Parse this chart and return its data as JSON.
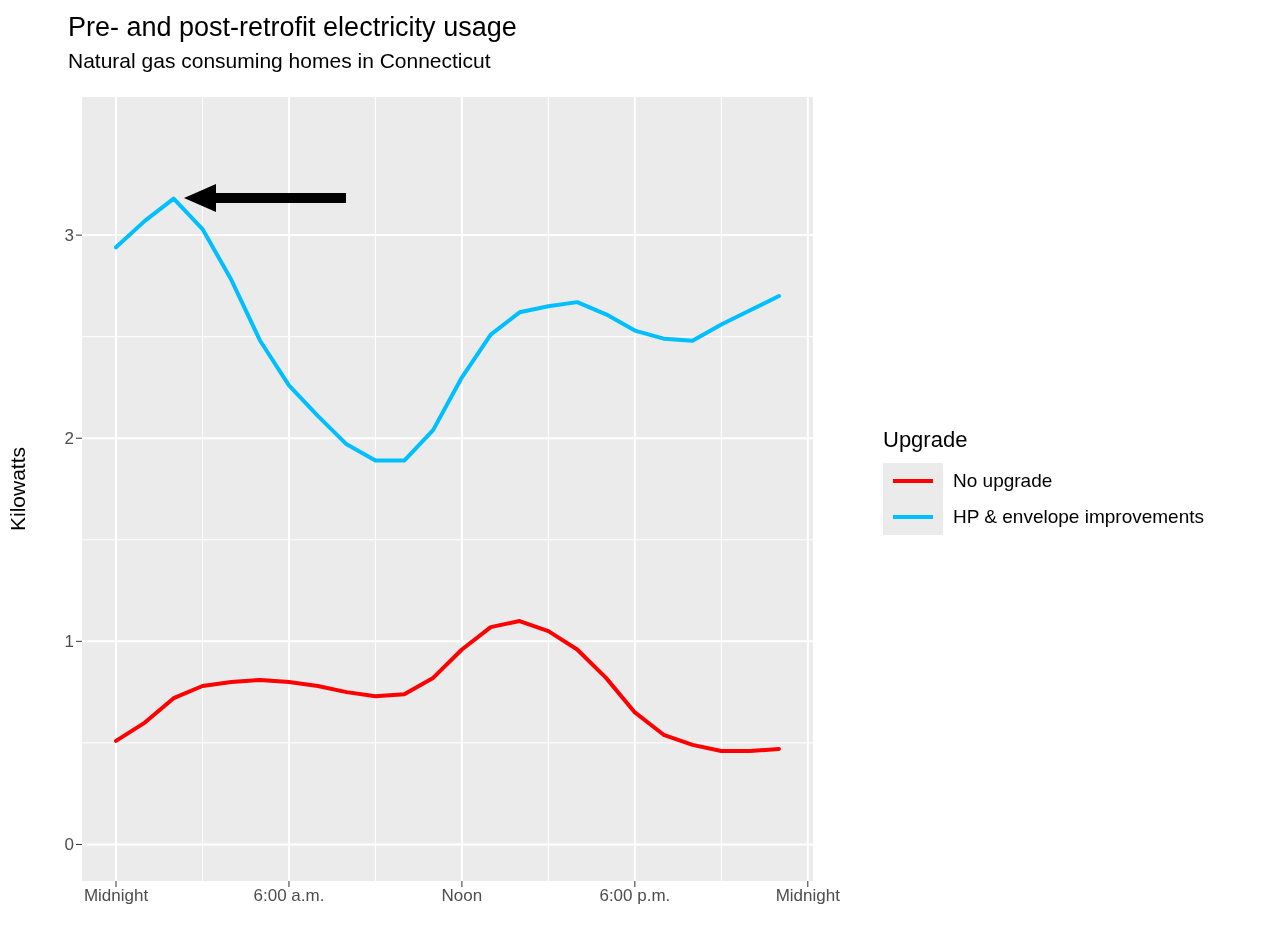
{
  "chart_data": {
    "type": "line",
    "title": "Pre- and post-retrofit electricity usage",
    "subtitle": "Natural gas consuming homes in Connecticut",
    "ylabel": "Kilowatts",
    "legend_title": "Upgrade",
    "x": [
      0,
      1,
      2,
      3,
      4,
      5,
      6,
      7,
      8,
      9,
      10,
      11,
      12,
      13,
      14,
      15,
      16,
      17,
      18,
      19,
      20,
      21,
      22,
      23
    ],
    "series": [
      {
        "name": "No upgrade",
        "color": "#ff0000",
        "values": [
          0.51,
          0.6,
          0.72,
          0.78,
          0.8,
          0.81,
          0.8,
          0.78,
          0.75,
          0.73,
          0.74,
          0.82,
          0.96,
          1.07,
          1.1,
          1.05,
          0.96,
          0.82,
          0.65,
          0.54,
          0.49,
          0.46,
          0.46,
          0.47
        ]
      },
      {
        "name": "HP & envelope improvements",
        "color": "#00bfff",
        "values": [
          2.94,
          3.07,
          3.18,
          3.03,
          2.78,
          2.48,
          2.26,
          2.11,
          1.97,
          1.89,
          1.89,
          2.04,
          2.3,
          2.51,
          2.62,
          2.65,
          2.67,
          2.61,
          2.53,
          2.49,
          2.48,
          2.56,
          2.63,
          2.7
        ]
      }
    ],
    "xlim": [
      -1.18,
      24.18
    ],
    "xticks": [
      {
        "value": 0,
        "label": "Midnight"
      },
      {
        "value": 6,
        "label": "6:00 a.m."
      },
      {
        "value": 12,
        "label": "Noon"
      },
      {
        "value": 18,
        "label": "6:00 p.m."
      },
      {
        "value": 24,
        "label": "Midnight"
      }
    ],
    "ylim": [
      -0.18,
      3.68
    ],
    "yticks": [
      0,
      1,
      2,
      3
    ],
    "grid": true,
    "legend": "right",
    "line_style": "solid",
    "marker": "none"
  }
}
